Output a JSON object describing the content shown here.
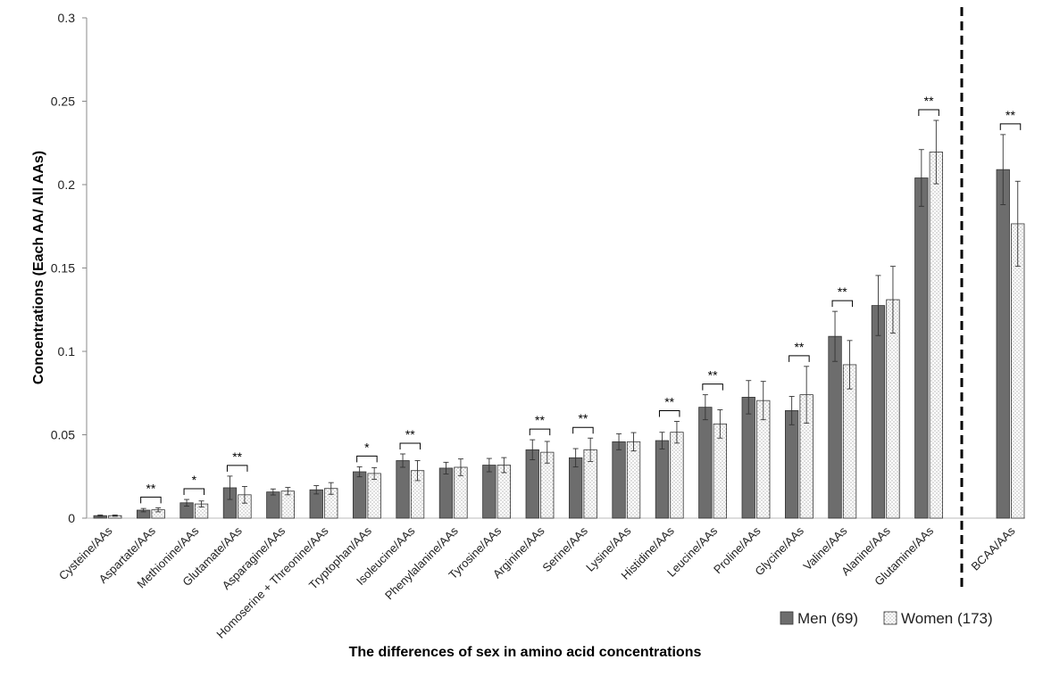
{
  "chart_data": {
    "type": "bar",
    "xlabel": "The differences of sex  in amino acid concentrations",
    "ylabel": "Concentrations (Each AA/ All AAs)",
    "ylim": [
      0,
      0.3
    ],
    "yticks": [
      "0",
      "0.05",
      "0.1",
      "0.15",
      "0.2",
      "0.25",
      "0.3"
    ],
    "grid": false,
    "legend_position": "bottom-right",
    "categories": [
      "Cysteine/AAs",
      "Aspartate/AAs",
      "Methionine/AAs",
      "Glutamate/AAs",
      "Asparagine/AAs",
      "Homoserine + Threonine/AAs",
      "Tryptophan/AAs",
      "Isoleucine/AAs",
      "Phenylalanine/AAs",
      "Tyrosine/AAs",
      "Arginine/AAs",
      "Serine/AAs",
      "Lysine/AAs",
      "Histidine/AAs",
      "Leucine/AAs",
      "Proline/AAs",
      "Glycine/AAs",
      "Valine/AAs",
      "Alanine/AAs",
      "Glutamine/AAs",
      "BCAA/AAs"
    ],
    "series": [
      {
        "name": "Men (69)",
        "color": "#6d6d6d",
        "pattern": "solid",
        "values": [
          0.0015,
          0.0048,
          0.0092,
          0.0182,
          0.0157,
          0.017,
          0.0278,
          0.0345,
          0.03,
          0.0318,
          0.041,
          0.0362,
          0.0458,
          0.0465,
          0.0665,
          0.0725,
          0.0645,
          0.109,
          0.1275,
          0.204,
          0.209
        ],
        "errors": [
          0.0004,
          0.001,
          0.002,
          0.007,
          0.0018,
          0.0025,
          0.003,
          0.004,
          0.0035,
          0.004,
          0.006,
          0.0055,
          0.0048,
          0.005,
          0.0075,
          0.01,
          0.0085,
          0.015,
          0.018,
          0.017,
          0.021
        ]
      },
      {
        "name": "Women (173)",
        "color": "#ffffff",
        "pattern": "dotted",
        "values": [
          0.0015,
          0.005,
          0.0085,
          0.014,
          0.0162,
          0.0178,
          0.0268,
          0.0285,
          0.0305,
          0.0318,
          0.0395,
          0.041,
          0.0458,
          0.0515,
          0.0565,
          0.0705,
          0.074,
          0.092,
          0.131,
          0.2195,
          0.1765
        ],
        "errors": [
          0.0004,
          0.0012,
          0.0018,
          0.005,
          0.0022,
          0.0035,
          0.0035,
          0.006,
          0.005,
          0.0045,
          0.0065,
          0.007,
          0.0055,
          0.0065,
          0.0085,
          0.0115,
          0.017,
          0.0145,
          0.02,
          0.019,
          0.0255
        ]
      }
    ],
    "significance": [
      {
        "category_index": 1,
        "label": "**"
      },
      {
        "category_index": 2,
        "label": "*"
      },
      {
        "category_index": 3,
        "label": "**"
      },
      {
        "category_index": 6,
        "label": "*"
      },
      {
        "category_index": 7,
        "label": "**"
      },
      {
        "category_index": 10,
        "label": "**"
      },
      {
        "category_index": 11,
        "label": "**"
      },
      {
        "category_index": 13,
        "label": "**"
      },
      {
        "category_index": 14,
        "label": "**"
      },
      {
        "category_index": 16,
        "label": "**"
      },
      {
        "category_index": 17,
        "label": "**"
      },
      {
        "category_index": 19,
        "label": "**"
      },
      {
        "category_index": 20,
        "label": "**"
      }
    ],
    "divider": {
      "after_category_index": 19,
      "style": "dashed"
    }
  }
}
